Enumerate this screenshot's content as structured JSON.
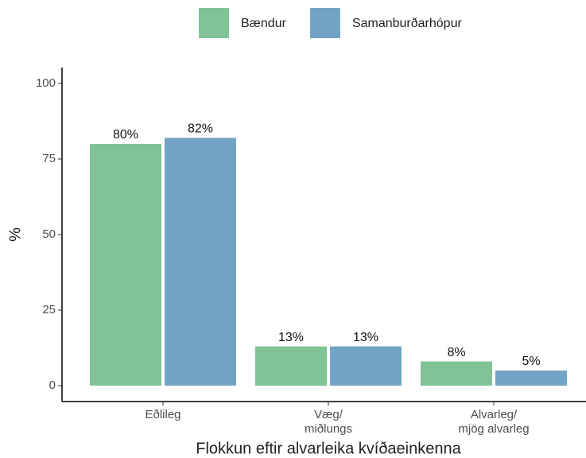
{
  "chart_data": {
    "type": "bar",
    "categories": [
      [
        "Eðlileg"
      ],
      [
        "Væg/",
        "miðlungs"
      ],
      [
        "Alvarleg/",
        "mjög alvarleg"
      ]
    ],
    "series": [
      {
        "name": "Bændur",
        "color": "#7fc397",
        "values": [
          80,
          13,
          8
        ],
        "value_labels": [
          "80%",
          "13%",
          "8%"
        ]
      },
      {
        "name": "Samanburðarhópur",
        "color": "#72a3c5",
        "values": [
          82,
          13,
          5
        ],
        "value_labels": [
          "82%",
          "13%",
          "5%"
        ]
      }
    ],
    "ylabel": "%",
    "xlabel": "Flokkun eftir alvarleika kvíðaeinkenna",
    "ylim": [
      0,
      100
    ],
    "yticks": [
      0,
      25,
      50,
      75,
      100
    ],
    "grid": false,
    "legend": "top"
  }
}
